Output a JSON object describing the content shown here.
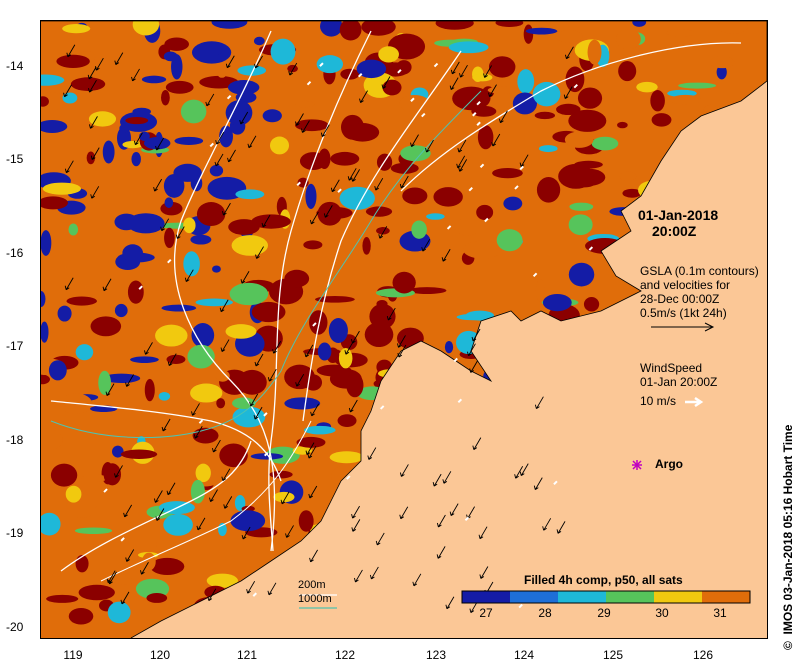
{
  "map": {
    "date": "01-Jan-2018",
    "time": "20:00Z",
    "gsla_lines": [
      "GSLA (0.1m contours)",
      "and velocities for",
      "28-Dec 00:00Z",
      "0.5m/s (1kt 24h)"
    ],
    "wind_lines": [
      "WindSpeed",
      "01-Jan 20:00Z"
    ],
    "wind_scale": "10 m/s",
    "argo_label": "Argo",
    "depth_200": "200m",
    "depth_1000": "1000m",
    "colorbar_title": "Filled 4h comp, p50, all sats",
    "colorbar_ticks": [
      "27",
      "28",
      "29",
      "30",
      "31"
    ],
    "credit": "IMOS 03-Jan-2018 05:16 Hobart Time",
    "credit_symbol": "©",
    "lat_ticks": [
      "-14",
      "-15",
      "-16",
      "-17",
      "-18",
      "-19",
      "-20"
    ],
    "lon_ticks": [
      "119",
      "120",
      "121",
      "122",
      "123",
      "124",
      "125",
      "126"
    ],
    "colors": {
      "land": "#fbc796",
      "hot": "#8b0000",
      "warm": "#e06d0a",
      "mid": "#f1c90f",
      "cool": "#56c45b",
      "cyan": "#1eb8d8",
      "cold": "#141ca6"
    }
  }
}
